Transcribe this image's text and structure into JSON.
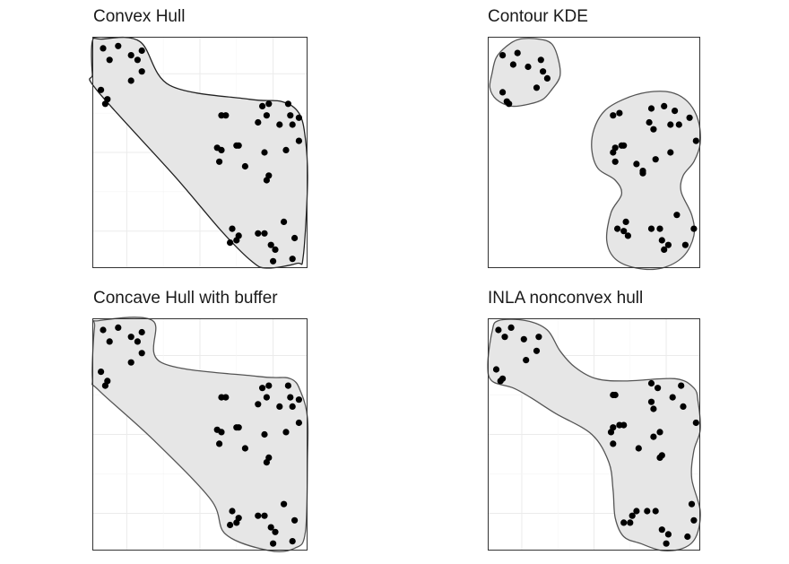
{
  "chart_data": [
    {
      "type": "scatter",
      "title": "Convex Hull",
      "xlabel": "",
      "ylabel": "",
      "grid": true,
      "xlim": [
        0,
        100
      ],
      "ylim": [
        0,
        100
      ],
      "points": [
        [
          5,
          95
        ],
        [
          12,
          96
        ],
        [
          8,
          90
        ],
        [
          18,
          92
        ],
        [
          23,
          94
        ],
        [
          21,
          90
        ],
        [
          23,
          85
        ],
        [
          18,
          81
        ],
        [
          4,
          77
        ],
        [
          7,
          73
        ],
        [
          6,
          71
        ],
        [
          79,
          70
        ],
        [
          82,
          71
        ],
        [
          91,
          71
        ],
        [
          81,
          66
        ],
        [
          92,
          66
        ],
        [
          96,
          65
        ],
        [
          77,
          63
        ],
        [
          87,
          62
        ],
        [
          93,
          62
        ],
        [
          60,
          66
        ],
        [
          62,
          66
        ],
        [
          96,
          55
        ],
        [
          67,
          53
        ],
        [
          68,
          53
        ],
        [
          58,
          52
        ],
        [
          60,
          51
        ],
        [
          90,
          51
        ],
        [
          59,
          46
        ],
        [
          80,
          50
        ],
        [
          71,
          44
        ],
        [
          82,
          40
        ],
        [
          81,
          38
        ],
        [
          89,
          20
        ],
        [
          65,
          17
        ],
        [
          77,
          15
        ],
        [
          80,
          15
        ],
        [
          68,
          14
        ],
        [
          64,
          11
        ],
        [
          67,
          12
        ],
        [
          94,
          13
        ],
        [
          83,
          10
        ],
        [
          85,
          8
        ],
        [
          93,
          4
        ],
        [
          84,
          3
        ]
      ],
      "hull": [
        [
          0,
          98
        ],
        [
          4,
          99
        ],
        [
          22,
          98
        ],
        [
          36,
          79
        ],
        [
          73,
          73
        ],
        [
          88,
          72
        ],
        [
          96,
          67
        ],
        [
          99,
          56
        ],
        [
          100,
          37
        ],
        [
          98,
          5
        ],
        [
          95,
          2
        ],
        [
          81,
          0
        ],
        [
          74,
          3
        ],
        [
          60,
          16
        ],
        [
          38,
          40
        ],
        [
          2,
          77
        ],
        [
          0,
          84
        ]
      ]
    },
    {
      "type": "scatter",
      "title": "Contour KDE",
      "xlabel": "",
      "ylabel": "",
      "grid": false,
      "xlim": [
        0,
        100
      ],
      "ylim": [
        0,
        100
      ],
      "points": [
        [
          7,
          92
        ],
        [
          14,
          93
        ],
        [
          12,
          88
        ],
        [
          19,
          87
        ],
        [
          25,
          90
        ],
        [
          26,
          85
        ],
        [
          28,
          82
        ],
        [
          23,
          78
        ],
        [
          7,
          76
        ],
        [
          9,
          72
        ],
        [
          10,
          71
        ],
        [
          59,
          66
        ],
        [
          62,
          67
        ],
        [
          77,
          69
        ],
        [
          83,
          70
        ],
        [
          88,
          68
        ],
        [
          76,
          63
        ],
        [
          95,
          65
        ],
        [
          86,
          62
        ],
        [
          90,
          62
        ],
        [
          78,
          60
        ],
        [
          98,
          55
        ],
        [
          60,
          52
        ],
        [
          63,
          53
        ],
        [
          64,
          53
        ],
        [
          86,
          50
        ],
        [
          59,
          50
        ],
        [
          79,
          47
        ],
        [
          60,
          46
        ],
        [
          70,
          45
        ],
        [
          73,
          42
        ],
        [
          73,
          41
        ],
        [
          65,
          20
        ],
        [
          77,
          17
        ],
        [
          81,
          17
        ],
        [
          89,
          23
        ],
        [
          61,
          17
        ],
        [
          64,
          16
        ],
        [
          66,
          14
        ],
        [
          97,
          17
        ],
        [
          82,
          12
        ],
        [
          85,
          10
        ],
        [
          93,
          10
        ],
        [
          83,
          8
        ]
      ],
      "contours": [
        [
          [
            2,
            84
          ],
          [
            4,
            91
          ],
          [
            9,
            96
          ],
          [
            15,
            99
          ],
          [
            24,
            99
          ],
          [
            30,
            97
          ],
          [
            33,
            91
          ],
          [
            34,
            83
          ],
          [
            30,
            77
          ],
          [
            26,
            73
          ],
          [
            20,
            71
          ],
          [
            11,
            70
          ],
          [
            4,
            73
          ],
          [
            1,
            78
          ]
        ],
        [
          [
            50,
            60
          ],
          [
            55,
            68
          ],
          [
            64,
            73
          ],
          [
            75,
            76
          ],
          [
            86,
            76
          ],
          [
            94,
            72
          ],
          [
            99,
            64
          ],
          [
            100,
            54
          ],
          [
            97,
            46
          ],
          [
            92,
            40
          ],
          [
            91,
            33
          ],
          [
            96,
            23
          ],
          [
            97,
            14
          ],
          [
            92,
            5
          ],
          [
            82,
            0
          ],
          [
            70,
            0
          ],
          [
            60,
            4
          ],
          [
            56,
            12
          ],
          [
            58,
            24
          ],
          [
            63,
            32
          ],
          [
            60,
            38
          ],
          [
            52,
            43
          ],
          [
            49,
            51
          ]
        ]
      ]
    },
    {
      "type": "scatter",
      "title": "Concave Hull with buffer",
      "xlabel": "",
      "ylabel": "",
      "grid": true,
      "xlim": [
        0,
        100
      ],
      "ylim": [
        0,
        100
      ],
      "points": [
        [
          5,
          95
        ],
        [
          12,
          96
        ],
        [
          8,
          90
        ],
        [
          18,
          92
        ],
        [
          23,
          94
        ],
        [
          21,
          90
        ],
        [
          23,
          85
        ],
        [
          18,
          81
        ],
        [
          4,
          77
        ],
        [
          7,
          73
        ],
        [
          6,
          71
        ],
        [
          79,
          70
        ],
        [
          82,
          71
        ],
        [
          91,
          71
        ],
        [
          81,
          66
        ],
        [
          92,
          66
        ],
        [
          96,
          65
        ],
        [
          77,
          63
        ],
        [
          87,
          62
        ],
        [
          93,
          62
        ],
        [
          60,
          66
        ],
        [
          62,
          66
        ],
        [
          96,
          55
        ],
        [
          67,
          53
        ],
        [
          68,
          53
        ],
        [
          58,
          52
        ],
        [
          60,
          51
        ],
        [
          90,
          51
        ],
        [
          59,
          46
        ],
        [
          80,
          50
        ],
        [
          71,
          44
        ],
        [
          82,
          40
        ],
        [
          81,
          38
        ],
        [
          89,
          20
        ],
        [
          65,
          17
        ],
        [
          77,
          15
        ],
        [
          80,
          15
        ],
        [
          68,
          14
        ],
        [
          64,
          11
        ],
        [
          67,
          12
        ],
        [
          94,
          13
        ],
        [
          83,
          10
        ],
        [
          85,
          8
        ],
        [
          93,
          4
        ],
        [
          84,
          3
        ]
      ],
      "hull": [
        [
          1,
          96
        ],
        [
          3,
          99
        ],
        [
          28,
          99
        ],
        [
          32,
          81
        ],
        [
          77,
          75
        ],
        [
          92,
          74
        ],
        [
          97,
          68
        ],
        [
          100,
          57
        ],
        [
          100,
          40
        ],
        [
          99,
          8
        ],
        [
          94,
          1
        ],
        [
          82,
          0
        ],
        [
          62,
          7
        ],
        [
          55,
          22
        ],
        [
          28,
          48
        ],
        [
          3,
          69
        ],
        [
          0,
          74
        ]
      ]
    },
    {
      "type": "scatter",
      "title": "INLA nonconvex hull",
      "xlabel": "",
      "ylabel": "",
      "grid": true,
      "xlim": [
        0,
        100
      ],
      "ylim": [
        0,
        100
      ],
      "points": [
        [
          5,
          95
        ],
        [
          11,
          96
        ],
        [
          8,
          92
        ],
        [
          17,
          91
        ],
        [
          24,
          92
        ],
        [
          23,
          86
        ],
        [
          18,
          82
        ],
        [
          4,
          78
        ],
        [
          7,
          74
        ],
        [
          6,
          73
        ],
        [
          59,
          67
        ],
        [
          60,
          67
        ],
        [
          77,
          72
        ],
        [
          80,
          70
        ],
        [
          91,
          71
        ],
        [
          77,
          64
        ],
        [
          87,
          66
        ],
        [
          92,
          62
        ],
        [
          78,
          61
        ],
        [
          98,
          55
        ],
        [
          59,
          53
        ],
        [
          62,
          54
        ],
        [
          64,
          54
        ],
        [
          81,
          51
        ],
        [
          58,
          51
        ],
        [
          78,
          49
        ],
        [
          59,
          46
        ],
        [
          71,
          44
        ],
        [
          82,
          41
        ],
        [
          81,
          40
        ],
        [
          96,
          20
        ],
        [
          70,
          17
        ],
        [
          75,
          17
        ],
        [
          79,
          17
        ],
        [
          68,
          15
        ],
        [
          64,
          12
        ],
        [
          67,
          12
        ],
        [
          97,
          13
        ],
        [
          82,
          9
        ],
        [
          85,
          7
        ],
        [
          94,
          6
        ],
        [
          84,
          3
        ]
      ],
      "hull": [
        [
          2,
          94
        ],
        [
          5,
          99
        ],
        [
          18,
          99
        ],
        [
          28,
          95
        ],
        [
          34,
          86
        ],
        [
          41,
          79
        ],
        [
          51,
          74
        ],
        [
          65,
          73
        ],
        [
          88,
          74
        ],
        [
          97,
          70
        ],
        [
          99,
          64
        ],
        [
          100,
          52
        ],
        [
          97,
          43
        ],
        [
          96,
          31
        ],
        [
          100,
          17
        ],
        [
          98,
          6
        ],
        [
          92,
          1
        ],
        [
          82,
          0
        ],
        [
          72,
          3
        ],
        [
          64,
          6
        ],
        [
          60,
          14
        ],
        [
          59,
          26
        ],
        [
          57,
          38
        ],
        [
          49,
          50
        ],
        [
          32,
          59
        ],
        [
          20,
          66
        ],
        [
          12,
          70
        ],
        [
          2,
          73
        ],
        [
          0,
          80
        ]
      ]
    }
  ]
}
